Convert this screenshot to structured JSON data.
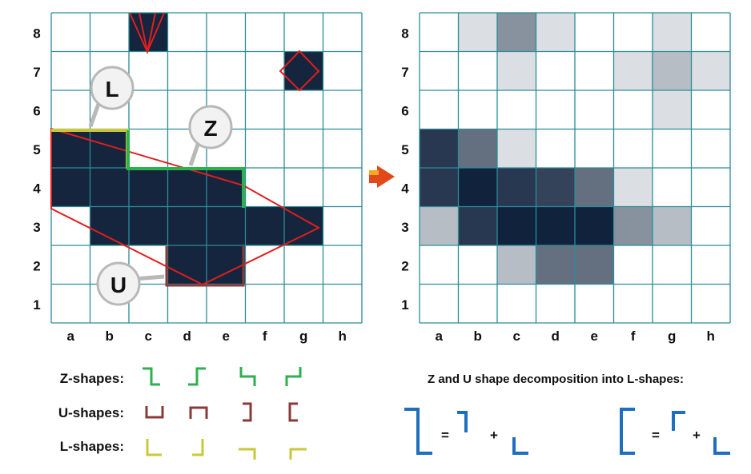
{
  "grid": {
    "columns": [
      "a",
      "b",
      "c",
      "d",
      "e",
      "f",
      "g",
      "h"
    ],
    "rows": [
      "8",
      "7",
      "6",
      "5",
      "4",
      "3",
      "2",
      "1"
    ],
    "colors": {
      "line": "#2c8c99",
      "dark": "#14253d",
      "contour": "#e01e1e"
    }
  },
  "left_board": {
    "filled_cells": [
      "c8",
      "g7",
      "a5",
      "b5",
      "a4",
      "b4",
      "c4",
      "d4",
      "e4",
      "b3",
      "c3",
      "d3",
      "e3",
      "f3",
      "g3",
      "d2",
      "e2"
    ],
    "callouts": {
      "l": "L",
      "z": "Z",
      "u": "U"
    }
  },
  "arrow_icon": "right-arrow-icon",
  "right_board": {
    "shaded_cells": [
      {
        "cell": "b8",
        "shade": 0.15
      },
      {
        "cell": "c8",
        "shade": 0.5
      },
      {
        "cell": "d8",
        "shade": 0.15
      },
      {
        "cell": "g8",
        "shade": 0.15
      },
      {
        "cell": "c7",
        "shade": 0.15
      },
      {
        "cell": "f7",
        "shade": 0.15
      },
      {
        "cell": "g7",
        "shade": 0.3
      },
      {
        "cell": "h7",
        "shade": 0.15
      },
      {
        "cell": "g6",
        "shade": 0.15
      },
      {
        "cell": "a5",
        "shade": 0.9
      },
      {
        "cell": "b5",
        "shade": 0.65
      },
      {
        "cell": "c5",
        "shade": 0.15
      },
      {
        "cell": "a4",
        "shade": 0.9
      },
      {
        "cell": "b4",
        "shade": 1.0
      },
      {
        "cell": "c4",
        "shade": 0.9
      },
      {
        "cell": "d4",
        "shade": 0.85
      },
      {
        "cell": "e4",
        "shade": 0.65
      },
      {
        "cell": "f4",
        "shade": 0.15
      },
      {
        "cell": "a3",
        "shade": 0.3
      },
      {
        "cell": "b3",
        "shade": 0.9
      },
      {
        "cell": "c3",
        "shade": 1.0
      },
      {
        "cell": "d3",
        "shade": 1.0
      },
      {
        "cell": "e3",
        "shade": 1.0
      },
      {
        "cell": "f3",
        "shade": 0.5
      },
      {
        "cell": "g3",
        "shade": 0.3
      },
      {
        "cell": "c2",
        "shade": 0.3
      },
      {
        "cell": "d2",
        "shade": 0.65
      },
      {
        "cell": "e2",
        "shade": 0.65
      }
    ]
  },
  "legend": {
    "z_label": "Z-shapes:",
    "u_label": "U-shapes:",
    "l_label": "L-shapes:",
    "z_color": "#2bb24c",
    "u_color": "#8b3a3a",
    "l_color": "#c8c83a"
  },
  "decomposition": {
    "title": "Z and U shape decomposition  into L-shapes:",
    "equals": "=",
    "plus": "+",
    "color": "#1f6fc0"
  }
}
